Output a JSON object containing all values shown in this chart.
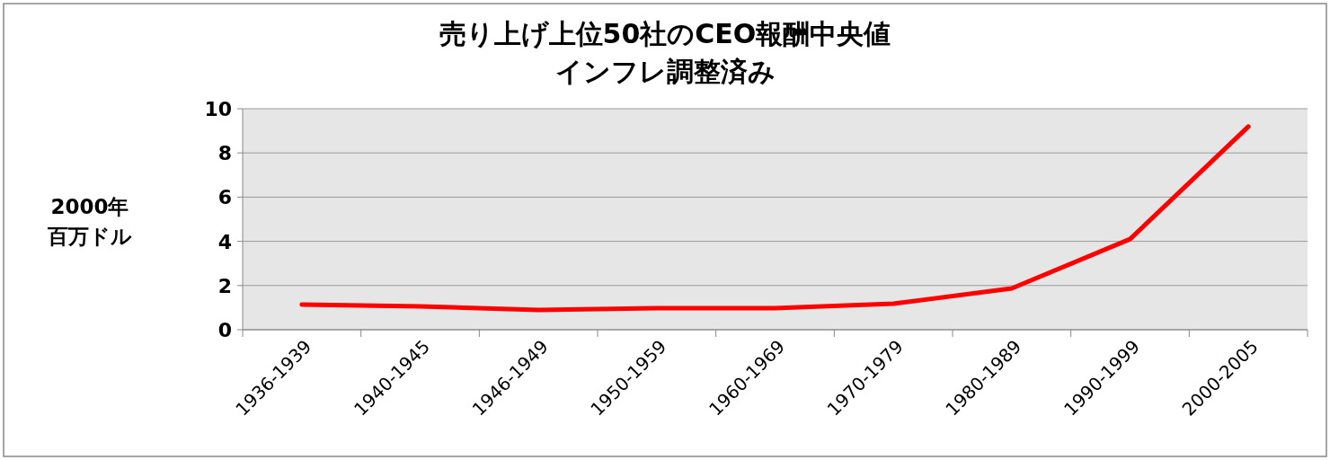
{
  "chart_data": {
    "type": "line",
    "title": "売り上げ上位50社のCEO報酬中央値",
    "subtitle": "インフレ調整済み",
    "ylabel": "2000年百万ドル",
    "categories": [
      "1936-1939",
      "1940-1945",
      "1946-1949",
      "1950-1959",
      "1960-1969",
      "1970-1979",
      "1980-1989",
      "1990-1999",
      "2000-2005"
    ],
    "series": [
      {
        "color": "#ff0000",
        "values": [
          1.14,
          1.06,
          0.89,
          0.98,
          0.98,
          1.18,
          1.87,
          4.1,
          9.19
        ]
      }
    ],
    "ylim": [
      0,
      10
    ],
    "yticks": [
      0,
      2,
      4,
      6,
      8,
      10
    ],
    "grid": "y",
    "marker": "none",
    "line_style": "solid"
  }
}
